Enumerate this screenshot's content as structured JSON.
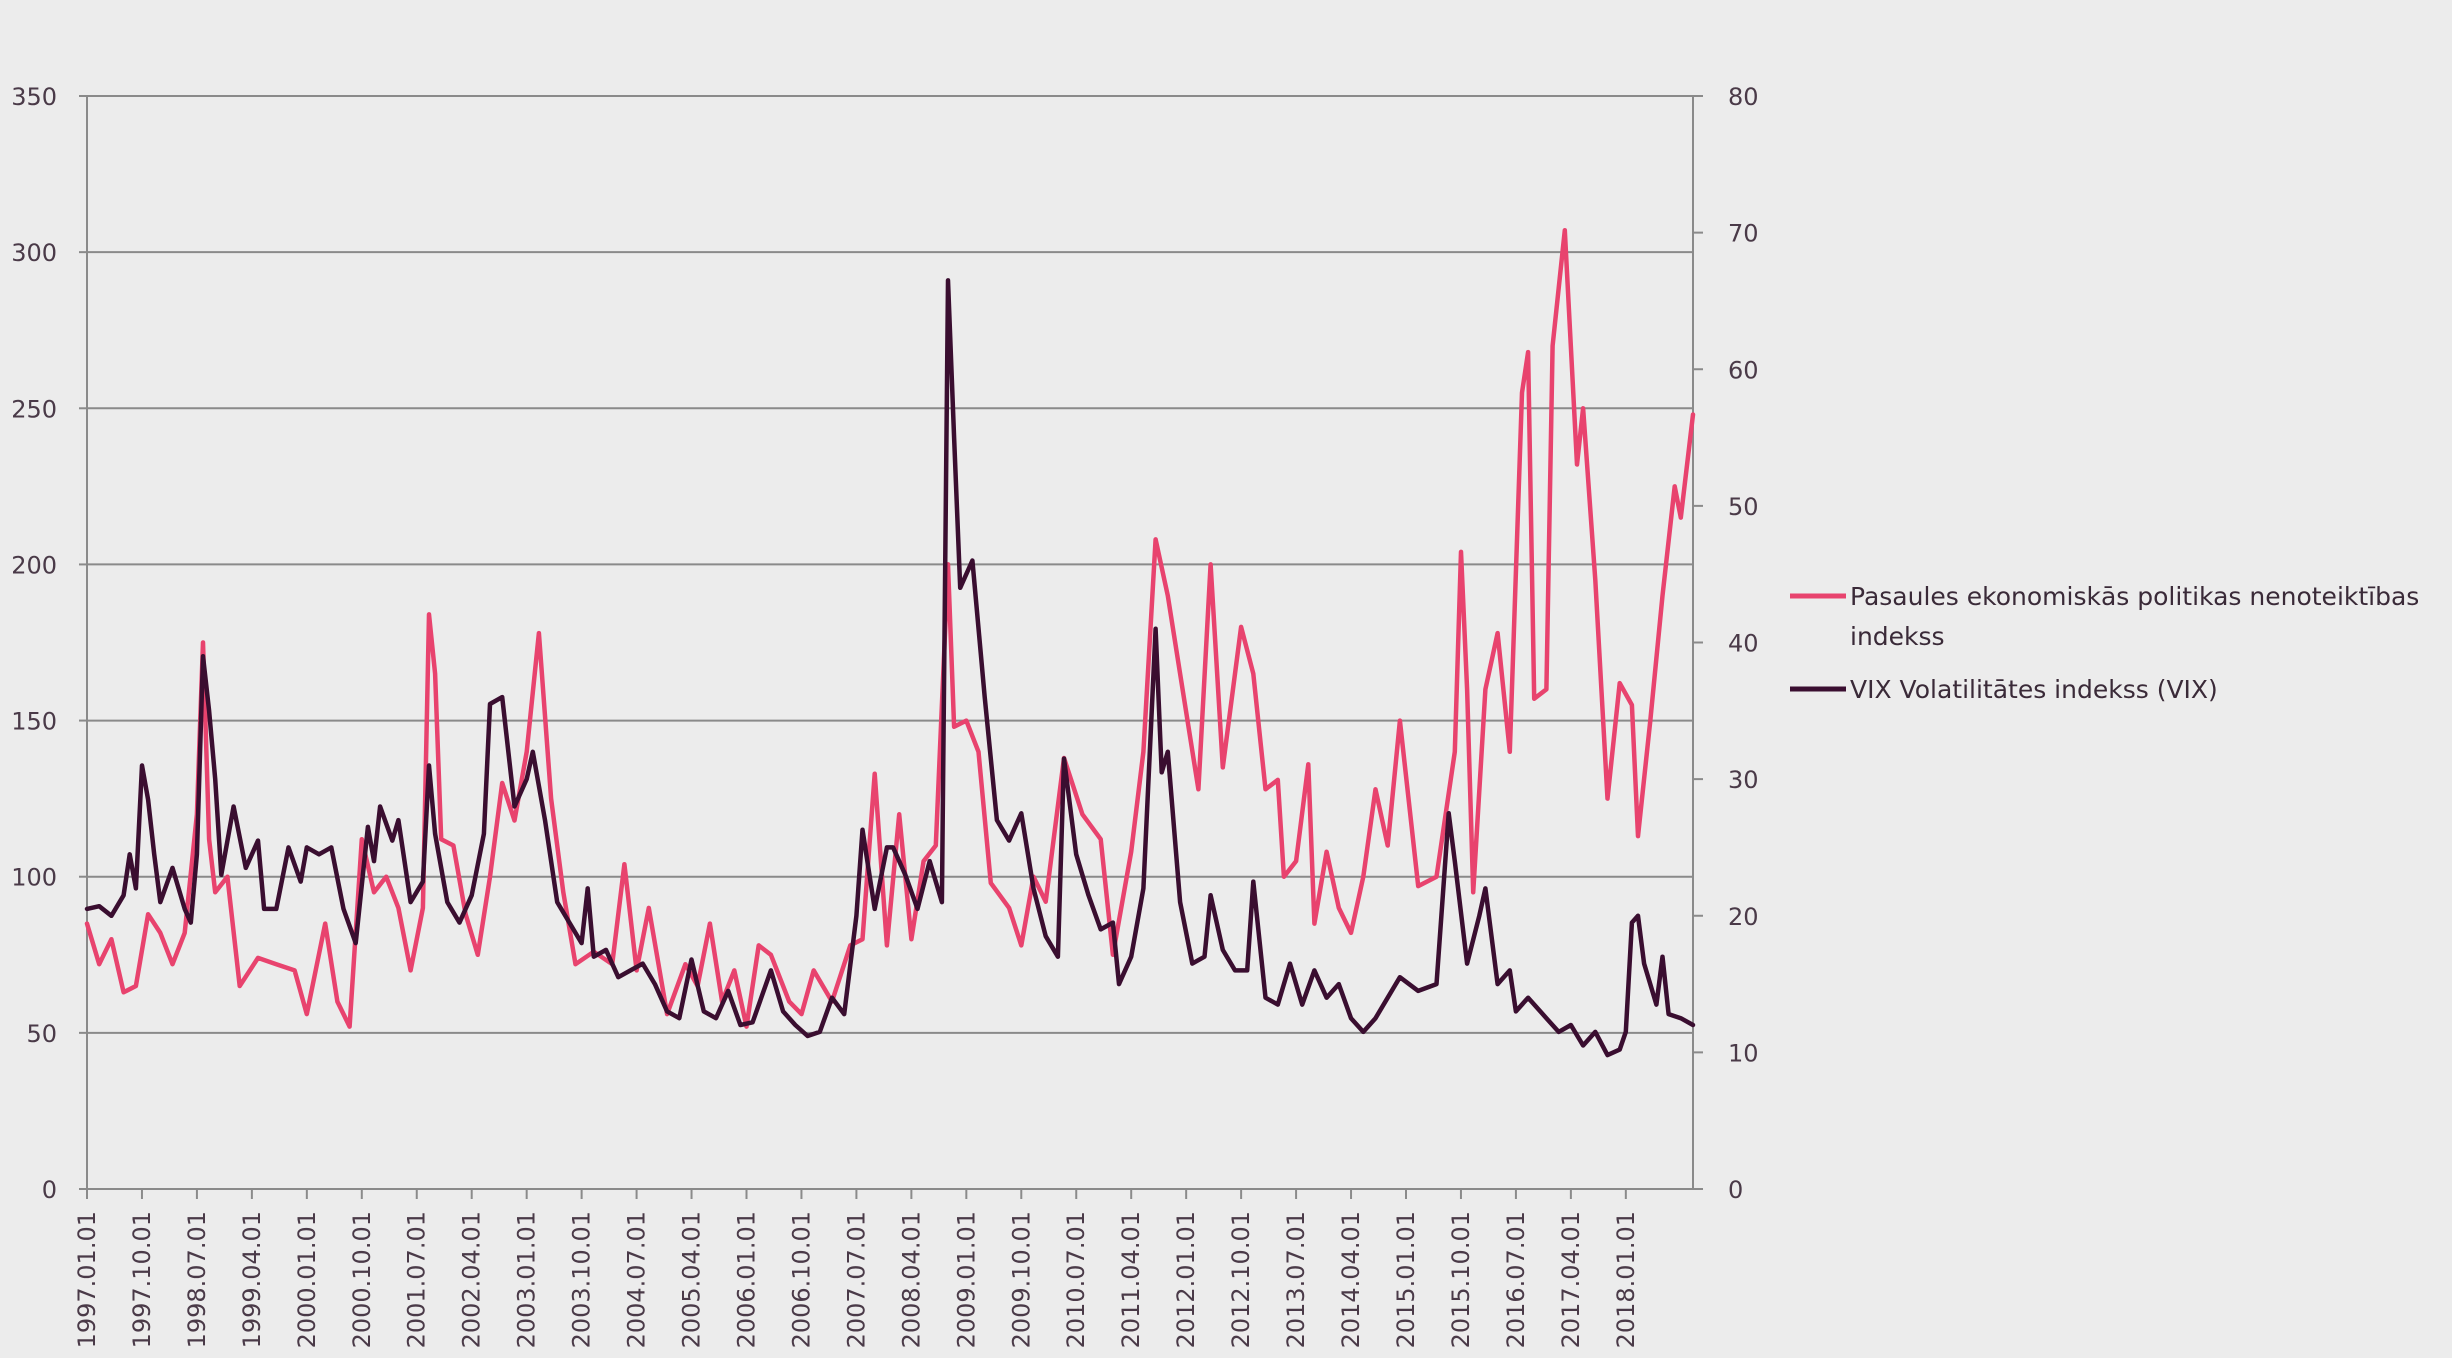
{
  "chart_data": {
    "type": "line",
    "title": "",
    "xlabel": "",
    "y_left": {
      "ylim": [
        0,
        350
      ],
      "ticks": [
        0,
        50,
        100,
        150,
        200,
        250,
        300,
        350
      ]
    },
    "y_right": {
      "ylim": [
        0,
        80
      ],
      "ticks": [
        0,
        10,
        20,
        30,
        40,
        50,
        60,
        70,
        80
      ]
    },
    "x_range": [
      "1997.01",
      "2018.12"
    ],
    "x_tick_labels": [
      "1997.01.01",
      "1997.10.01",
      "1998.07.01",
      "1999.04.01",
      "2000.01.01",
      "2000.10.01",
      "2001.07.01",
      "2002.04.01",
      "2003.01.01",
      "2003.10.01",
      "2004.07.01",
      "2005.04.01",
      "2006.01.01",
      "2006.10.01",
      "2007.07.01",
      "2008.04.01",
      "2009.01.01",
      "2009.10.01",
      "2010.07.01",
      "2011.04.01",
      "2012.01.01",
      "2012.10.01",
      "2013.07.01",
      "2014.04.01",
      "2015.01.01",
      "2015.10.01",
      "2016.07.01",
      "2017.04.01",
      "2018.01.01"
    ],
    "grid": true,
    "legend_position": "right",
    "series": [
      {
        "name": "Pasaules ekonomiskās politikas nenoteiktības indekss",
        "color": "#e8436e",
        "axis": "left",
        "points": [
          [
            "1997.01",
            85
          ],
          [
            "1997.03",
            72
          ],
          [
            "1997.05",
            80
          ],
          [
            "1997.07",
            63
          ],
          [
            "1997.09",
            65
          ],
          [
            "1997.11",
            88
          ],
          [
            "1998.01",
            82
          ],
          [
            "1998.03",
            72
          ],
          [
            "1998.05",
            82
          ],
          [
            "1998.07",
            120
          ],
          [
            "1998.08",
            175
          ],
          [
            "1998.09",
            112
          ],
          [
            "1998.10",
            95
          ],
          [
            "1998.12",
            100
          ],
          [
            "1999.02",
            65
          ],
          [
            "1999.05",
            74
          ],
          [
            "1999.08",
            72
          ],
          [
            "1999.11",
            70
          ],
          [
            "2000.01",
            56
          ],
          [
            "2000.04",
            85
          ],
          [
            "2000.06",
            60
          ],
          [
            "2000.08",
            52
          ],
          [
            "2000.10",
            112
          ],
          [
            "2000.12",
            95
          ],
          [
            "2001.02",
            100
          ],
          [
            "2001.04",
            90
          ],
          [
            "2001.06",
            70
          ],
          [
            "2001.08",
            90
          ],
          [
            "2001.09",
            184
          ],
          [
            "2001.10",
            165
          ],
          [
            "2001.11",
            112
          ],
          [
            "2002.01",
            110
          ],
          [
            "2002.03",
            88
          ],
          [
            "2002.05",
            75
          ],
          [
            "2002.07",
            100
          ],
          [
            "2002.09",
            130
          ],
          [
            "2002.11",
            118
          ],
          [
            "2003.01",
            140
          ],
          [
            "2003.03",
            178
          ],
          [
            "2003.05",
            125
          ],
          [
            "2003.07",
            95
          ],
          [
            "2003.09",
            72
          ],
          [
            "2003.12",
            76
          ],
          [
            "2004.03",
            72
          ],
          [
            "2004.05",
            104
          ],
          [
            "2004.07",
            70
          ],
          [
            "2004.09",
            90
          ],
          [
            "2004.12",
            56
          ],
          [
            "2005.03",
            72
          ],
          [
            "2005.05",
            65
          ],
          [
            "2005.07",
            85
          ],
          [
            "2005.09",
            60
          ],
          [
            "2005.11",
            70
          ],
          [
            "2006.01",
            52
          ],
          [
            "2006.03",
            78
          ],
          [
            "2006.05",
            75
          ],
          [
            "2006.08",
            60
          ],
          [
            "2006.10",
            56
          ],
          [
            "2006.12",
            70
          ],
          [
            "2007.03",
            60
          ],
          [
            "2007.06",
            78
          ],
          [
            "2007.08",
            80
          ],
          [
            "2007.10",
            133
          ],
          [
            "2007.12",
            78
          ],
          [
            "2008.02",
            120
          ],
          [
            "2008.04",
            80
          ],
          [
            "2008.06",
            105
          ],
          [
            "2008.08",
            110
          ],
          [
            "2008.10",
            200
          ],
          [
            "2008.11",
            148
          ],
          [
            "2009.01",
            150
          ],
          [
            "2009.03",
            140
          ],
          [
            "2009.05",
            98
          ],
          [
            "2009.08",
            90
          ],
          [
            "2009.10",
            78
          ],
          [
            "2009.12",
            100
          ],
          [
            "2010.02",
            92
          ],
          [
            "2010.05",
            138
          ],
          [
            "2010.08",
            120
          ],
          [
            "2010.11",
            112
          ],
          [
            "2011.01",
            75
          ],
          [
            "2011.04",
            108
          ],
          [
            "2011.06",
            140
          ],
          [
            "2011.08",
            208
          ],
          [
            "2011.10",
            190
          ],
          [
            "2011.12",
            165
          ],
          [
            "2012.03",
            128
          ],
          [
            "2012.05",
            200
          ],
          [
            "2012.07",
            135
          ],
          [
            "2012.10",
            180
          ],
          [
            "2012.12",
            165
          ],
          [
            "2013.02",
            128
          ],
          [
            "2013.04",
            131
          ],
          [
            "2013.05",
            100
          ],
          [
            "2013.07",
            105
          ],
          [
            "2013.09",
            136
          ],
          [
            "2013.10",
            85
          ],
          [
            "2013.12",
            108
          ],
          [
            "2014.02",
            90
          ],
          [
            "2014.04",
            82
          ],
          [
            "2014.06",
            100
          ],
          [
            "2014.08",
            128
          ],
          [
            "2014.10",
            110
          ],
          [
            "2014.12",
            150
          ],
          [
            "2015.03",
            97
          ],
          [
            "2015.06",
            100
          ],
          [
            "2015.09",
            140
          ],
          [
            "2015.10",
            204
          ],
          [
            "2015.11",
            160
          ],
          [
            "2015.12",
            95
          ],
          [
            "2016.02",
            160
          ],
          [
            "2016.04",
            178
          ],
          [
            "2016.06",
            140
          ],
          [
            "2016.08",
            255
          ],
          [
            "2016.09",
            268
          ],
          [
            "2016.10",
            157
          ],
          [
            "2016.12",
            160
          ],
          [
            "2017.01",
            270
          ],
          [
            "2017.03",
            307
          ],
          [
            "2017.05",
            232
          ],
          [
            "2017.06",
            250
          ],
          [
            "2017.08",
            195
          ],
          [
            "2017.10",
            125
          ],
          [
            "2017.12",
            162
          ],
          [
            "2018.02",
            155
          ],
          [
            "2018.03",
            113
          ],
          [
            "2018.05",
            150
          ],
          [
            "2018.07",
            190
          ],
          [
            "2018.09",
            225
          ],
          [
            "2018.10",
            215
          ],
          [
            "2018.12",
            248
          ]
        ]
      },
      {
        "name": "VIX Volatilitātes indekss (VIX)",
        "color": "#3a0e30",
        "axis": "right",
        "points": [
          [
            "1997.01",
            20.5
          ],
          [
            "1997.03",
            20.7
          ],
          [
            "1997.05",
            20
          ],
          [
            "1997.07",
            21.5
          ],
          [
            "1997.08",
            24.5
          ],
          [
            "1997.09",
            22
          ],
          [
            "1997.10",
            31
          ],
          [
            "1997.11",
            28.5
          ],
          [
            "1997.12",
            24.5
          ],
          [
            "1998.01",
            21
          ],
          [
            "1998.03",
            23.5
          ],
          [
            "1998.05",
            20.5
          ],
          [
            "1998.06",
            19.5
          ],
          [
            "1998.07",
            24.5
          ],
          [
            "1998.08",
            39
          ],
          [
            "1998.09",
            35
          ],
          [
            "1998.10",
            30
          ],
          [
            "1998.11",
            23
          ],
          [
            "1999.01",
            28
          ],
          [
            "1999.03",
            23.5
          ],
          [
            "1999.05",
            25.5
          ],
          [
            "1999.06",
            20.5
          ],
          [
            "1999.08",
            20.5
          ],
          [
            "1999.10",
            25
          ],
          [
            "1999.12",
            22.5
          ],
          [
            "2000.01",
            25
          ],
          [
            "2000.03",
            24.5
          ],
          [
            "2000.05",
            25
          ],
          [
            "2000.07",
            20.5
          ],
          [
            "2000.09",
            18
          ],
          [
            "2000.11",
            26.5
          ],
          [
            "2000.12",
            24
          ],
          [
            "2001.01",
            28
          ],
          [
            "2001.03",
            25.5
          ],
          [
            "2001.04",
            27
          ],
          [
            "2001.06",
            21
          ],
          [
            "2001.08",
            22.5
          ],
          [
            "2001.09",
            31
          ],
          [
            "2001.10",
            26
          ],
          [
            "2001.12",
            21
          ],
          [
            "2002.02",
            19.5
          ],
          [
            "2002.04",
            21.5
          ],
          [
            "2002.06",
            26
          ],
          [
            "2002.07",
            35.5
          ],
          [
            "2002.09",
            36
          ],
          [
            "2002.11",
            28
          ],
          [
            "2003.01",
            30
          ],
          [
            "2003.02",
            32
          ],
          [
            "2003.04",
            27
          ],
          [
            "2003.06",
            21
          ],
          [
            "2003.08",
            19.5
          ],
          [
            "2003.10",
            18
          ],
          [
            "2003.11",
            22
          ],
          [
            "2003.12",
            17
          ],
          [
            "2004.02",
            17.5
          ],
          [
            "2004.04",
            15.5
          ],
          [
            "2004.06",
            16
          ],
          [
            "2004.08",
            16.5
          ],
          [
            "2004.10",
            15
          ],
          [
            "2004.12",
            13
          ],
          [
            "2005.02",
            12.5
          ],
          [
            "2005.04",
            16.8
          ],
          [
            "2005.06",
            13
          ],
          [
            "2005.08",
            12.5
          ],
          [
            "2005.10",
            14.5
          ],
          [
            "2005.12",
            12
          ],
          [
            "2006.02",
            12.2
          ],
          [
            "2006.05",
            16
          ],
          [
            "2006.07",
            13
          ],
          [
            "2006.09",
            12
          ],
          [
            "2006.11",
            11.2
          ],
          [
            "2007.01",
            11.5
          ],
          [
            "2007.03",
            14
          ],
          [
            "2007.05",
            12.8
          ],
          [
            "2007.07",
            20
          ],
          [
            "2007.08",
            26.3
          ],
          [
            "2007.10",
            20.5
          ],
          [
            "2007.12",
            25
          ],
          [
            "2008.01",
            25
          ],
          [
            "2008.03",
            23
          ],
          [
            "2008.05",
            20.5
          ],
          [
            "2008.07",
            24
          ],
          [
            "2008.09",
            21
          ],
          [
            "2008.10",
            66.5
          ],
          [
            "2008.11",
            55
          ],
          [
            "2008.12",
            44
          ],
          [
            "2009.02",
            46
          ],
          [
            "2009.04",
            36
          ],
          [
            "2009.06",
            27
          ],
          [
            "2009.08",
            25.5
          ],
          [
            "2009.10",
            27.5
          ],
          [
            "2009.12",
            22
          ],
          [
            "2010.02",
            18.5
          ],
          [
            "2010.04",
            17
          ],
          [
            "2010.05",
            31.5
          ],
          [
            "2010.07",
            24.5
          ],
          [
            "2010.09",
            21.5
          ],
          [
            "2010.11",
            19
          ],
          [
            "2011.01",
            19.5
          ],
          [
            "2011.02",
            15
          ],
          [
            "2011.04",
            17
          ],
          [
            "2011.06",
            22
          ],
          [
            "2011.08",
            41
          ],
          [
            "2011.09",
            30.5
          ],
          [
            "2011.10",
            32
          ],
          [
            "2011.12",
            21
          ],
          [
            "2012.02",
            16.5
          ],
          [
            "2012.04",
            17
          ],
          [
            "2012.05",
            21.5
          ],
          [
            "2012.07",
            17.5
          ],
          [
            "2012.09",
            16
          ],
          [
            "2012.11",
            16
          ],
          [
            "2012.12",
            22.5
          ],
          [
            "2013.02",
            14
          ],
          [
            "2013.04",
            13.5
          ],
          [
            "2013.06",
            16.5
          ],
          [
            "2013.08",
            13.5
          ],
          [
            "2013.10",
            16
          ],
          [
            "2013.12",
            14
          ],
          [
            "2014.02",
            15
          ],
          [
            "2014.04",
            12.5
          ],
          [
            "2014.06",
            11.5
          ],
          [
            "2014.08",
            12.5
          ],
          [
            "2014.10",
            14
          ],
          [
            "2014.12",
            15.5
          ],
          [
            "2015.03",
            14.5
          ],
          [
            "2015.06",
            15
          ],
          [
            "2015.08",
            27.5
          ],
          [
            "2015.09",
            24
          ],
          [
            "2015.11",
            16.5
          ],
          [
            "2016.01",
            20
          ],
          [
            "2016.02",
            22
          ],
          [
            "2016.04",
            15
          ],
          [
            "2016.06",
            16
          ],
          [
            "2016.07",
            13
          ],
          [
            "2016.09",
            14
          ],
          [
            "2016.11",
            13
          ],
          [
            "2016.12",
            12.5
          ],
          [
            "2017.02",
            11.5
          ],
          [
            "2017.04",
            12
          ],
          [
            "2017.06",
            10.5
          ],
          [
            "2017.08",
            11.5
          ],
          [
            "2017.10",
            9.8
          ],
          [
            "2017.12",
            10.2
          ],
          [
            "2018.01",
            11.5
          ],
          [
            "2018.02",
            19.5
          ],
          [
            "2018.03",
            20
          ],
          [
            "2018.04",
            16.5
          ],
          [
            "2018.06",
            13.5
          ],
          [
            "2018.07",
            17
          ],
          [
            "2018.08",
            12.8
          ],
          [
            "2018.10",
            12.5
          ],
          [
            "2018.12",
            12
          ]
        ]
      }
    ]
  }
}
